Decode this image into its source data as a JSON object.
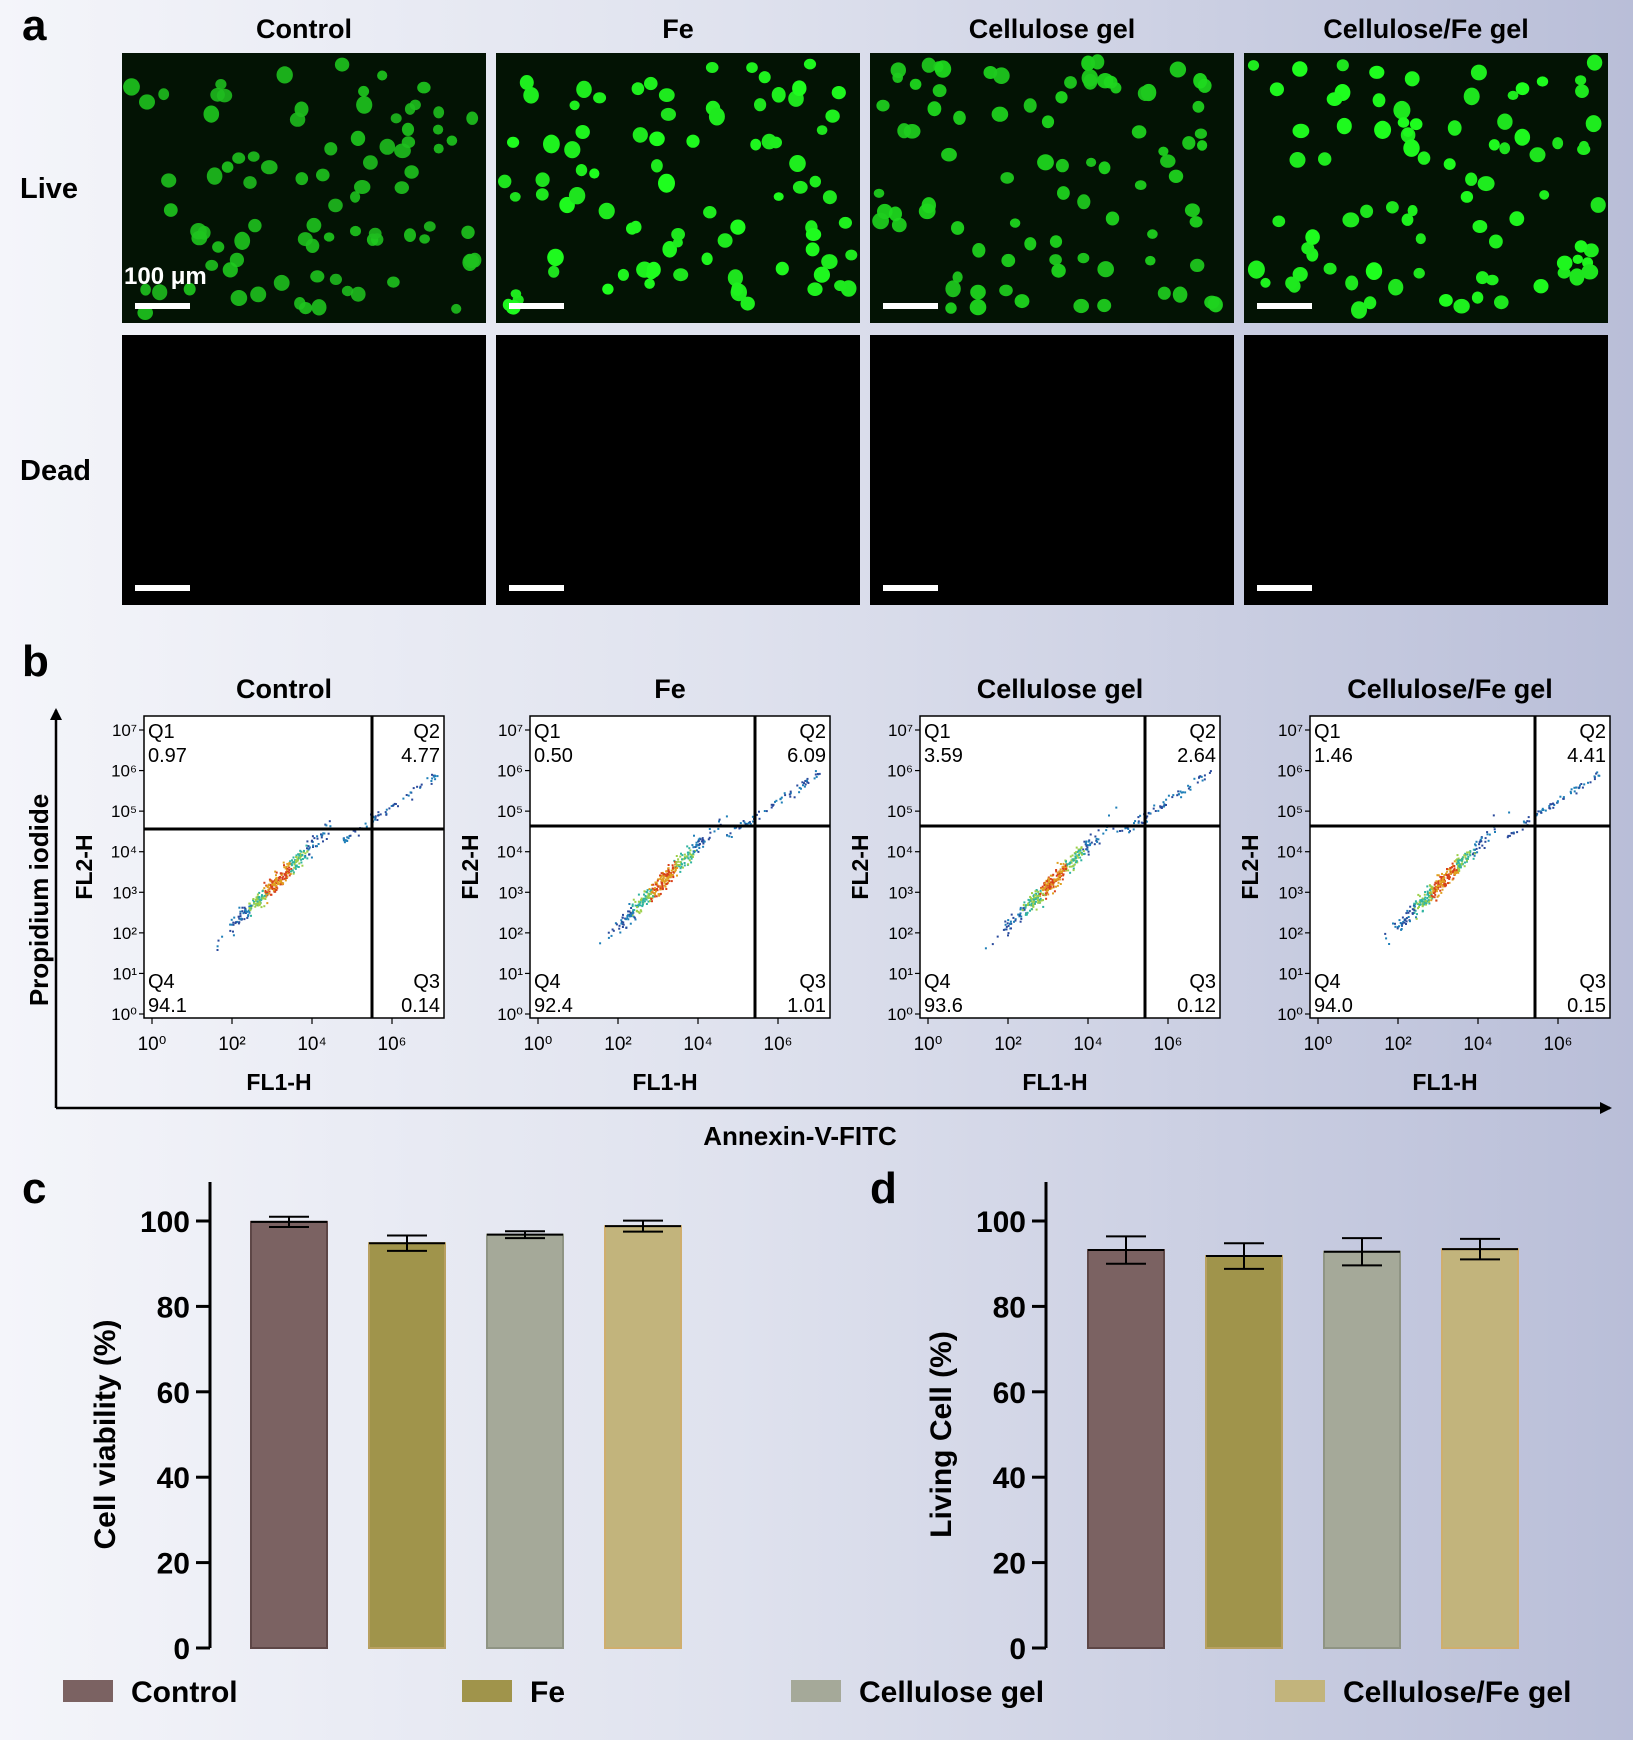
{
  "panels": {
    "a": {
      "label": "a",
      "columns": [
        "Control",
        "Fe",
        "Cellulose gel",
        "Cellulose/Fe gel"
      ],
      "rows": [
        "Live",
        "Dead"
      ],
      "scale_bar_label": "100 μm"
    },
    "b": {
      "label": "b",
      "y_axis_title": "Propidium iodide",
      "x_axis_title": "Annexin-V-FITC",
      "plot_xlabel": "FL1-H",
      "plot_ylabel": "FL2-H",
      "x_ticks": [
        "10⁰",
        "10²",
        "10⁴",
        "10⁶"
      ],
      "y_ticks": [
        "10⁷",
        "10⁶",
        "10⁵",
        "10⁴",
        "10³",
        "10²",
        "10¹",
        "10⁰"
      ],
      "quadrant_labels": [
        "Q1",
        "Q2",
        "Q3",
        "Q4"
      ]
    },
    "c": {
      "label": "c"
    },
    "d": {
      "label": "d"
    }
  },
  "legend": {
    "items": [
      {
        "label": "Control",
        "color": "#7b6262"
      },
      {
        "label": "Fe",
        "color": "#a0944b"
      },
      {
        "label": "Cellulose  gel",
        "color": "#a5a999"
      },
      {
        "label": "Cellulose/Fe gel",
        "color": "#c2b47c"
      }
    ]
  },
  "chart_data": [
    {
      "type": "scatter",
      "panel": "b",
      "title": "Control",
      "xlabel": "FL1-H",
      "ylabel": "FL2-H",
      "log_scale": true,
      "xlim": [
        "10⁰",
        "10⁷"
      ],
      "ylim": [
        "10⁰",
        "10⁷"
      ],
      "quadrants": {
        "Q1": "0.97",
        "Q2": "4.77",
        "Q3": "0.14",
        "Q4": "94.1"
      }
    },
    {
      "type": "scatter",
      "panel": "b",
      "title": "Fe",
      "xlabel": "FL1-H",
      "ylabel": "FL2-H",
      "log_scale": true,
      "xlim": [
        "10⁰",
        "10⁷"
      ],
      "ylim": [
        "10⁰",
        "10⁷"
      ],
      "quadrants": {
        "Q1": "0.50",
        "Q2": "6.09",
        "Q3": "1.01",
        "Q4": "92.4"
      }
    },
    {
      "type": "scatter",
      "panel": "b",
      "title": "Cellulose gel",
      "xlabel": "FL1-H",
      "ylabel": "FL2-H",
      "log_scale": true,
      "xlim": [
        "10⁰",
        "10⁷"
      ],
      "ylim": [
        "10⁰",
        "10⁷"
      ],
      "quadrants": {
        "Q1": "3.59",
        "Q2": "2.64",
        "Q3": "0.12",
        "Q4": "93.6"
      }
    },
    {
      "type": "scatter",
      "panel": "b",
      "title": "Cellulose/Fe gel",
      "xlabel": "FL1-H",
      "ylabel": "FL2-H",
      "log_scale": true,
      "xlim": [
        "10⁰",
        "10⁷"
      ],
      "ylim": [
        "10⁰",
        "10⁷"
      ],
      "quadrants": {
        "Q1": "1.46",
        "Q2": "4.41",
        "Q3": "0.15",
        "Q4": "94.0"
      }
    },
    {
      "type": "bar",
      "panel": "c",
      "categories": [
        "Control",
        "Fe",
        "Cellulose  gel",
        "Cellulose/Fe gel"
      ],
      "values": [
        99.8,
        94.8,
        96.8,
        98.8
      ],
      "errors": [
        1.2,
        1.8,
        0.8,
        1.3
      ],
      "ylabel": "Cell viability (%)",
      "ylim": [
        0,
        100
      ],
      "yticks": [
        0,
        20,
        40,
        60,
        80,
        100
      ]
    },
    {
      "type": "bar",
      "panel": "d",
      "categories": [
        "Control",
        "Fe",
        "Cellulose  gel",
        "Cellulose/Fe gel"
      ],
      "values": [
        93.2,
        91.8,
        92.8,
        93.4
      ],
      "errors": [
        3.2,
        3.0,
        3.2,
        2.4
      ],
      "ylabel": "Living Cell (%)",
      "ylim": [
        0,
        100
      ],
      "yticks": [
        0,
        20,
        40,
        60,
        80,
        100
      ]
    }
  ]
}
